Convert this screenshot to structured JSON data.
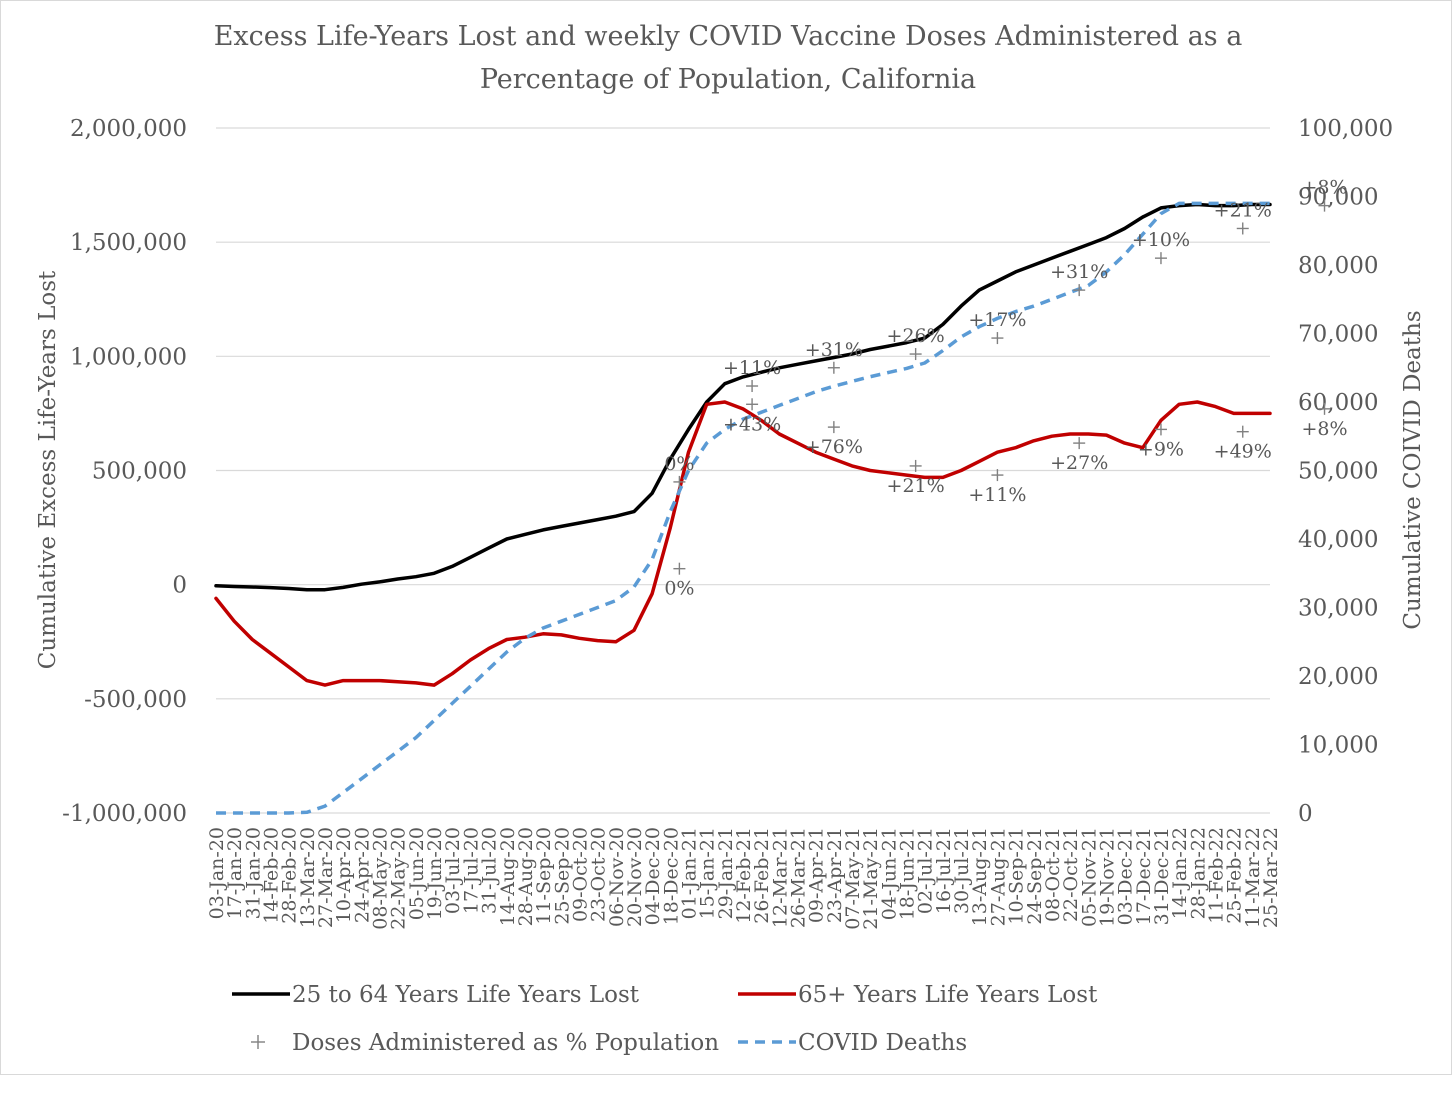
{
  "chart_data": {
    "type": "line",
    "title": "Excess Life-Years Lost and weekly COVID Vaccine Doses Administered as a Percentage of Population, California",
    "title_lines": [
      "Excess Life-Years Lost and weekly COVID Vaccine Doses Administered as a",
      "Percentage of Population, California"
    ],
    "ylabel": "Cumulative Excess Life-Years Lost",
    "y2label": "Cumulative COIVID Deaths",
    "ylim": [
      -1000000,
      2000000
    ],
    "y2lim": [
      0,
      100000
    ],
    "yticks": [
      -1000000,
      -500000,
      0,
      500000,
      1000000,
      1500000,
      2000000
    ],
    "yticklabels": [
      "-1,000,000",
      "-500,000",
      "0",
      "500,000",
      "1,000,000",
      "1,500,000",
      "2,000,000"
    ],
    "y2ticks": [
      0,
      10000,
      20000,
      30000,
      40000,
      50000,
      60000,
      70000,
      80000,
      90000,
      100000
    ],
    "y2ticklabels": [
      "0",
      "10,000",
      "20,000",
      "30,000",
      "40,000",
      "50,000",
      "60,000",
      "70,000",
      "80,000",
      "90,000",
      "100,000"
    ],
    "grid": "horizontal",
    "legend_position": "bottom",
    "x": [
      "03-Jan-20",
      "17-Jan-20",
      "31-Jan-20",
      "14-Feb-20",
      "28-Feb-20",
      "13-Mar-20",
      "27-Mar-20",
      "10-Apr-20",
      "24-Apr-20",
      "08-May-20",
      "22-May-20",
      "05-Jun-20",
      "19-Jun-20",
      "03-Jul-20",
      "17-Jul-20",
      "31-Jul-20",
      "14-Aug-20",
      "28-Aug-20",
      "11-Sep-20",
      "25-Sep-20",
      "09-Oct-20",
      "23-Oct-20",
      "06-Nov-20",
      "20-Nov-20",
      "04-Dec-20",
      "18-Dec-20",
      "01-Jan-21",
      "15-Jan-21",
      "29-Jan-21",
      "12-Feb-21",
      "26-Feb-21",
      "12-Mar-21",
      "26-Mar-21",
      "09-Apr-21",
      "23-Apr-21",
      "07-May-21",
      "21-May-21",
      "04-Jun-21",
      "18-Jun-21",
      "02-Jul-21",
      "16-Jul-21",
      "30-Jul-21",
      "13-Aug-21",
      "27-Aug-21",
      "10-Sep-21",
      "24-Sep-21",
      "08-Oct-21",
      "22-Oct-21",
      "05-Nov-21",
      "19-Nov-21",
      "03-Dec-21",
      "17-Dec-21",
      "31-Dec-21",
      "14-Jan-22",
      "28-Jan-22",
      "11-Feb-22",
      "25-Feb-22",
      "11-Mar-22",
      "25-Mar-22"
    ],
    "series": [
      {
        "name": "25 to 64 Years Life Years Lost",
        "axis": "left",
        "color": "#000000",
        "style": "solid",
        "values": [
          -5000,
          -8000,
          -10000,
          -13000,
          -17000,
          -22000,
          -22000,
          -12000,
          2000,
          12000,
          25000,
          35000,
          50000,
          80000,
          120000,
          160000,
          200000,
          220000,
          240000,
          255000,
          270000,
          285000,
          300000,
          320000,
          400000,
          550000,
          680000,
          800000,
          880000,
          910000,
          930000,
          950000,
          965000,
          980000,
          995000,
          1010000,
          1030000,
          1045000,
          1060000,
          1080000,
          1140000,
          1220000,
          1290000,
          1330000,
          1370000,
          1400000,
          1430000,
          1460000,
          1490000,
          1520000,
          1560000,
          1610000,
          1650000,
          1660000,
          1665000,
          1660000,
          1660000,
          1665000,
          1665000
        ]
      },
      {
        "name": "65+ Years Life Years Lost",
        "axis": "left",
        "color": "#c00000",
        "style": "solid",
        "values": [
          -60000,
          -160000,
          -240000,
          -300000,
          -360000,
          -420000,
          -440000,
          -420000,
          -420000,
          -420000,
          -425000,
          -430000,
          -440000,
          -390000,
          -330000,
          -280000,
          -240000,
          -230000,
          -215000,
          -220000,
          -235000,
          -245000,
          -250000,
          -200000,
          -40000,
          250000,
          580000,
          790000,
          800000,
          770000,
          720000,
          660000,
          620000,
          580000,
          550000,
          520000,
          500000,
          490000,
          480000,
          470000,
          470000,
          500000,
          540000,
          580000,
          600000,
          630000,
          650000,
          660000,
          660000,
          655000,
          620000,
          600000,
          720000,
          790000,
          800000,
          780000,
          750000,
          750000,
          750000
        ]
      },
      {
        "name": "COVID Deaths",
        "axis": "right",
        "color": "#5b9bd5",
        "style": "dashed",
        "values": [
          0,
          0,
          0,
          0,
          0,
          100,
          1000,
          3000,
          5000,
          7000,
          9000,
          11000,
          13500,
          16000,
          18500,
          21000,
          23500,
          25500,
          27000,
          28000,
          29000,
          30000,
          31000,
          33000,
          37000,
          44000,
          50000,
          54000,
          56000,
          57500,
          58500,
          59500,
          60500,
          61500,
          62300,
          63000,
          63700,
          64300,
          64900,
          65700,
          67500,
          69500,
          71000,
          72200,
          73200,
          74000,
          75000,
          76000,
          77000,
          79000,
          81500,
          84500,
          87500,
          89000,
          89000,
          89000,
          89000,
          89000,
          89000
        ]
      }
    ],
    "doses_label": "Doses Administered as % Population",
    "dose_markers": [
      {
        "x": "25-Dec-20",
        "y": 450000,
        "label": "0%",
        "label_pos": "above"
      },
      {
        "x": "25-Dec-20",
        "y": 70000,
        "label": "0%",
        "label_pos": "below"
      },
      {
        "x": "19-Feb-21",
        "y": 870000,
        "label": "+11%",
        "label_pos": "above"
      },
      {
        "x": "19-Feb-21",
        "y": 790000,
        "label": "+43%",
        "label_pos": "below"
      },
      {
        "x": "23-Apr-21",
        "y": 950000,
        "label": "+31%",
        "label_pos": "above"
      },
      {
        "x": "23-Apr-21",
        "y": 690000,
        "label": "+76%",
        "label_pos": "below"
      },
      {
        "x": "25-Jun-21",
        "y": 1010000,
        "label": "+26%",
        "label_pos": "above"
      },
      {
        "x": "25-Jun-21",
        "y": 520000,
        "label": "+21%",
        "label_pos": "below"
      },
      {
        "x": "27-Aug-21",
        "y": 1080000,
        "label": "+17%",
        "label_pos": "above"
      },
      {
        "x": "27-Aug-21",
        "y": 480000,
        "label": "+11%",
        "label_pos": "below"
      },
      {
        "x": "29-Oct-21",
        "y": 1290000,
        "label": "+31%",
        "label_pos": "above"
      },
      {
        "x": "29-Oct-21",
        "y": 620000,
        "label": "+27%",
        "label_pos": "below"
      },
      {
        "x": "31-Dec-21",
        "y": 1430000,
        "label": "+10%",
        "label_pos": "above"
      },
      {
        "x": "31-Dec-21",
        "y": 680000,
        "label": "+9%",
        "label_pos": "below"
      },
      {
        "x": "04-Mar-22",
        "y": 1560000,
        "label": "+21%",
        "label_pos": "above"
      },
      {
        "x": "04-Mar-22",
        "y": 670000,
        "label": "+49%",
        "label_pos": "below"
      },
      {
        "x": "06-May-22",
        "y": 1660000,
        "label": "+8%",
        "label_pos": "above"
      },
      {
        "x": "06-May-22",
        "y": 770000,
        "label": "+8%",
        "label_pos": "below"
      }
    ]
  }
}
